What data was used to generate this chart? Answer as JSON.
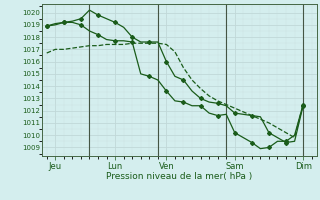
{
  "bg_color": "#d4eeee",
  "grid_major_color": "#b8d4d4",
  "grid_minor_color": "#c8e4e4",
  "line_color": "#1a5c1a",
  "marker_color": "#1a5c1a",
  "xlabel": "Pression niveau de la mer( hPa )",
  "xlabel_color": "#1a5c1a",
  "tick_color": "#1a5c1a",
  "ylim": [
    1008.3,
    1020.7
  ],
  "yticks": [
    1009,
    1010,
    1011,
    1012,
    1013,
    1014,
    1015,
    1016,
    1017,
    1018,
    1019,
    1020
  ],
  "xtick_labels": [
    "Jeu",
    "",
    "Lun",
    "Ven",
    "",
    "Sam",
    "",
    "Dim"
  ],
  "vline_positions": [
    2.5,
    6.5,
    10.5,
    15.0
  ],
  "vline_color": "#445544",
  "series1_x": [
    0.0,
    0.5,
    1.0,
    1.5,
    2.0,
    2.5,
    3.0,
    3.5,
    4.0,
    4.5,
    5.0,
    5.5,
    6.0,
    6.5,
    7.0,
    7.5,
    8.0,
    8.5,
    9.0,
    9.5,
    10.0,
    10.5,
    11.0,
    11.5,
    12.0,
    12.5,
    13.0,
    13.5,
    14.0,
    14.5,
    15.0
  ],
  "series1_y": [
    1016.7,
    1017.0,
    1017.0,
    1017.1,
    1017.2,
    1017.3,
    1017.3,
    1017.4,
    1017.4,
    1017.4,
    1017.5,
    1017.5,
    1017.5,
    1017.5,
    1017.4,
    1016.8,
    1015.5,
    1014.5,
    1013.8,
    1013.2,
    1012.8,
    1012.5,
    1012.2,
    1011.9,
    1011.6,
    1011.3,
    1011.0,
    1010.6,
    1010.2,
    1009.8,
    1012.5
  ],
  "series2_x": [
    0.0,
    0.5,
    1.0,
    1.5,
    2.0,
    2.5,
    3.0,
    3.5,
    4.0,
    4.5,
    5.0,
    5.5,
    6.0,
    6.5,
    7.0,
    7.5,
    8.0,
    8.5,
    9.0,
    9.5,
    10.0,
    10.5,
    11.0,
    11.5,
    12.0,
    12.5,
    13.0,
    13.5,
    14.0,
    14.5,
    15.0
  ],
  "series2_y": [
    1018.9,
    1019.0,
    1019.2,
    1019.3,
    1019.5,
    1020.2,
    1019.8,
    1019.5,
    1019.2,
    1018.8,
    1018.0,
    1017.6,
    1017.6,
    1017.6,
    1016.0,
    1014.8,
    1014.5,
    1013.6,
    1013.0,
    1012.7,
    1012.6,
    1012.4,
    1011.8,
    1011.7,
    1011.6,
    1011.5,
    1010.2,
    1009.8,
    1009.4,
    1009.5,
    1012.4
  ],
  "series3_x": [
    0.0,
    0.5,
    1.0,
    1.5,
    2.0,
    2.5,
    3.0,
    3.5,
    4.0,
    4.5,
    5.0,
    5.5,
    6.0,
    6.5,
    7.0,
    7.5,
    8.0,
    8.5,
    9.0,
    9.5,
    10.0,
    10.5,
    11.0,
    11.5,
    12.0,
    12.5,
    13.0,
    13.5,
    14.0,
    14.5,
    15.0
  ],
  "series3_y": [
    1018.9,
    1019.1,
    1019.2,
    1019.2,
    1019.0,
    1018.5,
    1018.2,
    1017.8,
    1017.7,
    1017.7,
    1017.6,
    1015.0,
    1014.8,
    1014.5,
    1013.6,
    1012.8,
    1012.7,
    1012.4,
    1012.4,
    1011.8,
    1011.6,
    1011.7,
    1010.2,
    1009.8,
    1009.4,
    1008.9,
    1009.0,
    1009.5,
    1009.5,
    1010.0,
    1012.5
  ]
}
